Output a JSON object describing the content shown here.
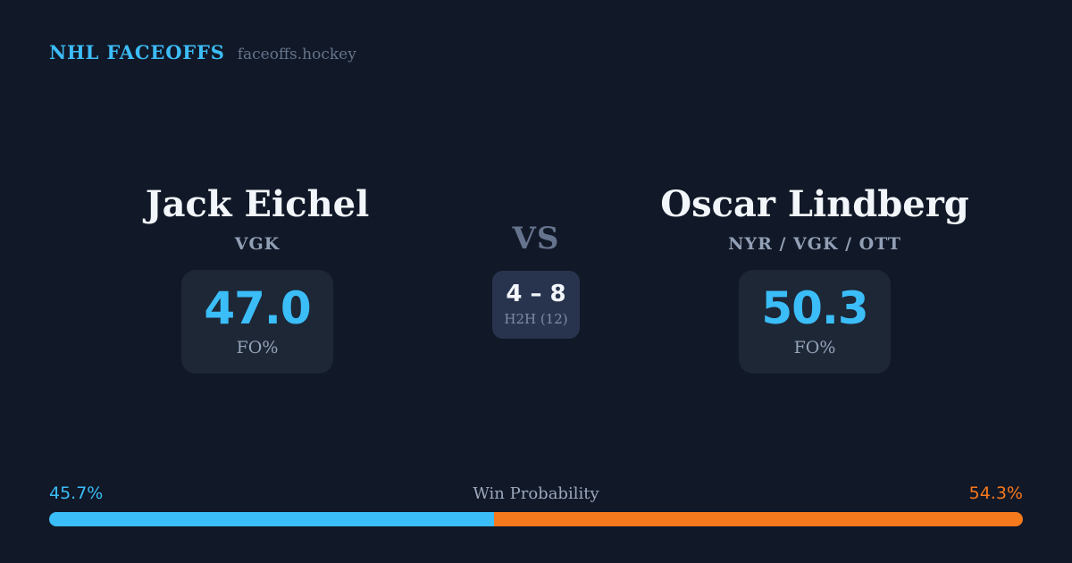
{
  "header": {
    "title": "NHL FACEOFFS",
    "site": "faceoffs.hockey"
  },
  "players": {
    "left": {
      "name": "Jack Eichel",
      "teams": "VGK",
      "stat_value": "47.0",
      "stat_label": "FO%"
    },
    "right": {
      "name": "Oscar Lindberg",
      "teams": "NYR / VGK / OTT",
      "stat_value": "50.3",
      "stat_label": "FO%"
    }
  },
  "matchup": {
    "vs_label": "VS",
    "h2h_record": "4 – 8",
    "h2h_label": "H2H (12)"
  },
  "win_probability": {
    "label": "Win Probability",
    "left_pct_label": "45.7%",
    "right_pct_label": "54.3%",
    "left_value": 45.7,
    "right_value": 54.3
  },
  "colors": {
    "background": "#111827",
    "stat_card": "#1d2736",
    "h2h_card": "#28344e",
    "accent_blue": "#3bbdf8",
    "accent_orange": "#f5791d",
    "text_primary": "#f2f6fa",
    "text_muted": "#92a0b6",
    "vs_text": "#66738e"
  },
  "chart_data": {
    "type": "bar",
    "title": "Win Probability",
    "categories": [
      "Jack Eichel",
      "Oscar Lindberg"
    ],
    "values": [
      45.7,
      54.3
    ],
    "colors": [
      "#3bbdf8",
      "#f5791d"
    ],
    "layout": "horizontal-stacked",
    "range": [
      0,
      100
    ]
  }
}
